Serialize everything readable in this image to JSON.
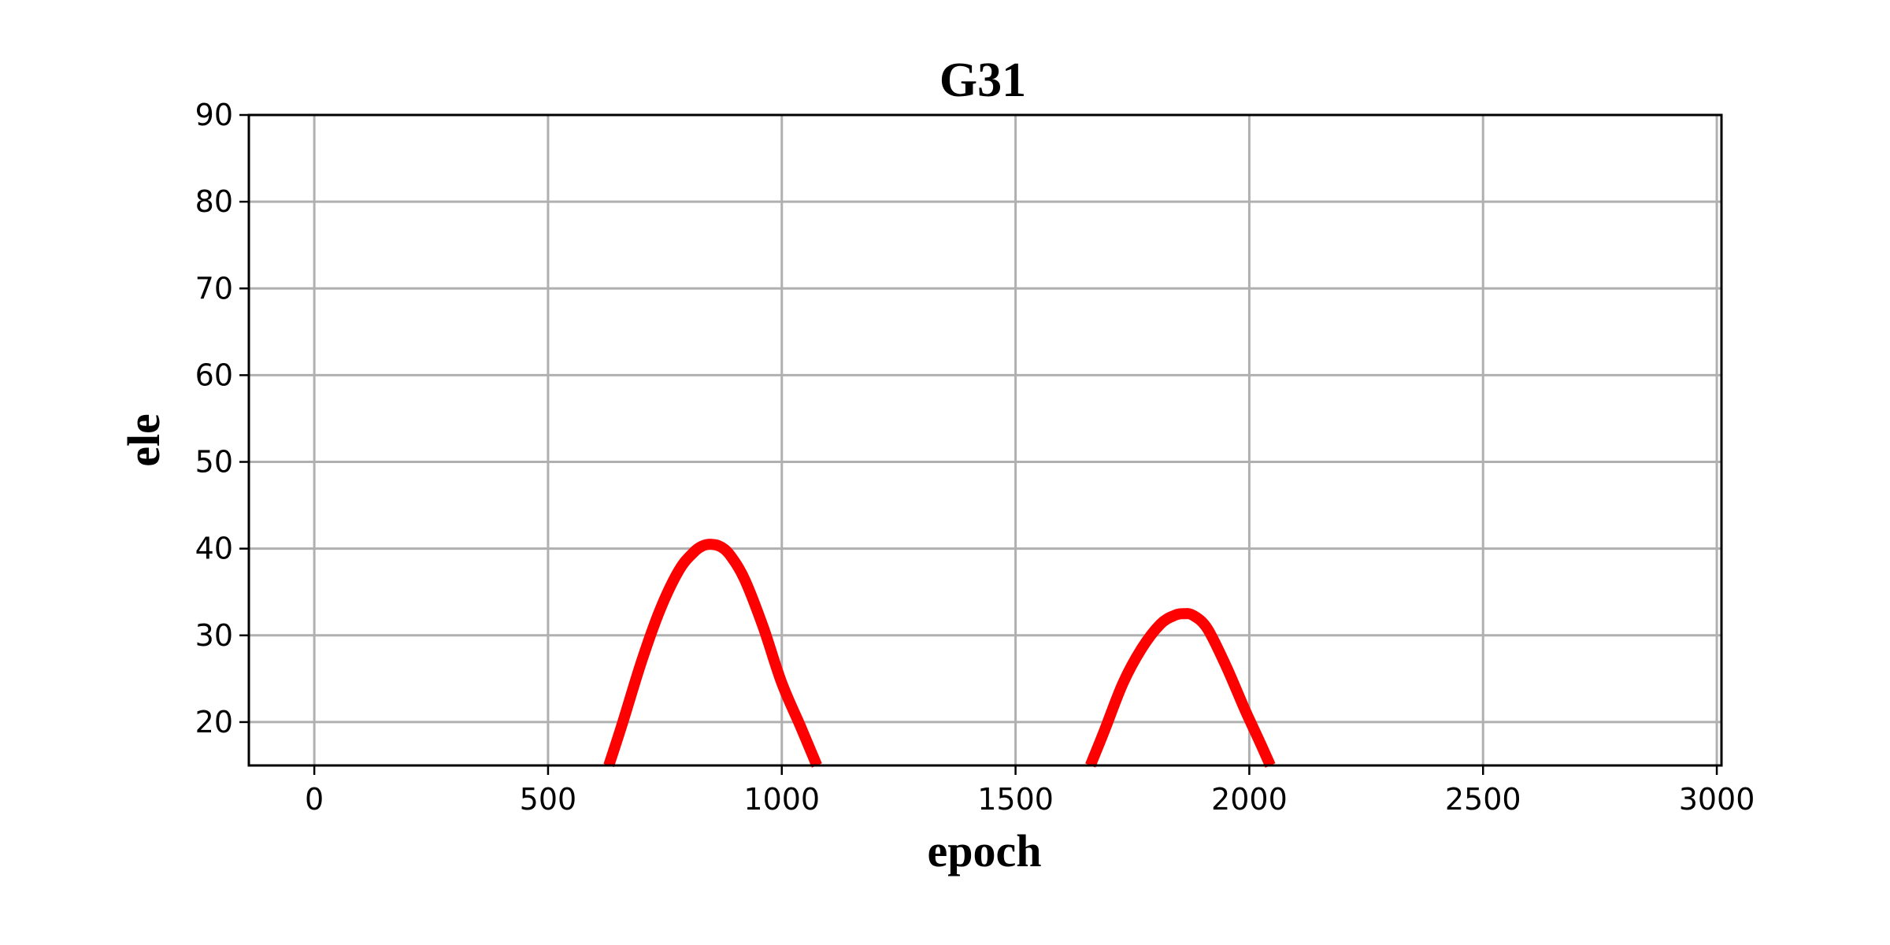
{
  "chart_data": {
    "type": "line",
    "title": "G31",
    "xlabel": "epoch",
    "ylabel": "ele",
    "xlim": [
      -140,
      3010
    ],
    "ylim": [
      15,
      90
    ],
    "x_ticks": [
      0,
      500,
      1000,
      1500,
      2000,
      2500,
      3000
    ],
    "y_ticks": [
      20,
      30,
      40,
      50,
      60,
      70,
      80,
      90
    ],
    "x_tick_labels": [
      "0",
      "500",
      "1000",
      "1500",
      "2000",
      "2500",
      "3000"
    ],
    "y_tick_labels": [
      "20",
      "30",
      "40",
      "50",
      "60",
      "70",
      "80",
      "90"
    ],
    "grid": true,
    "color": "#ff0000",
    "series": [
      {
        "color": "#ff0000",
        "segments": [
          {
            "x": [
              630,
              660,
              700,
              740,
              780,
              810,
              830,
              850,
              870,
              890,
              920,
              960,
              1000,
              1040,
              1075
            ],
            "y": [
              15,
              20,
              27,
              33,
              37.5,
              39.5,
              40.3,
              40.5,
              40.2,
              39.2,
              36.5,
              31,
              24.5,
              19.5,
              15
            ]
          },
          {
            "x": [
              1660,
              1690,
              1730,
              1770,
              1810,
              1840,
              1860,
              1880,
              1910,
              1950,
              1990,
              2020,
              2045
            ],
            "y": [
              15,
              19,
              24.5,
              28.5,
              31.3,
              32.3,
              32.5,
              32.3,
              30.8,
              26.5,
              21.5,
              18,
              15
            ]
          }
        ]
      }
    ]
  }
}
